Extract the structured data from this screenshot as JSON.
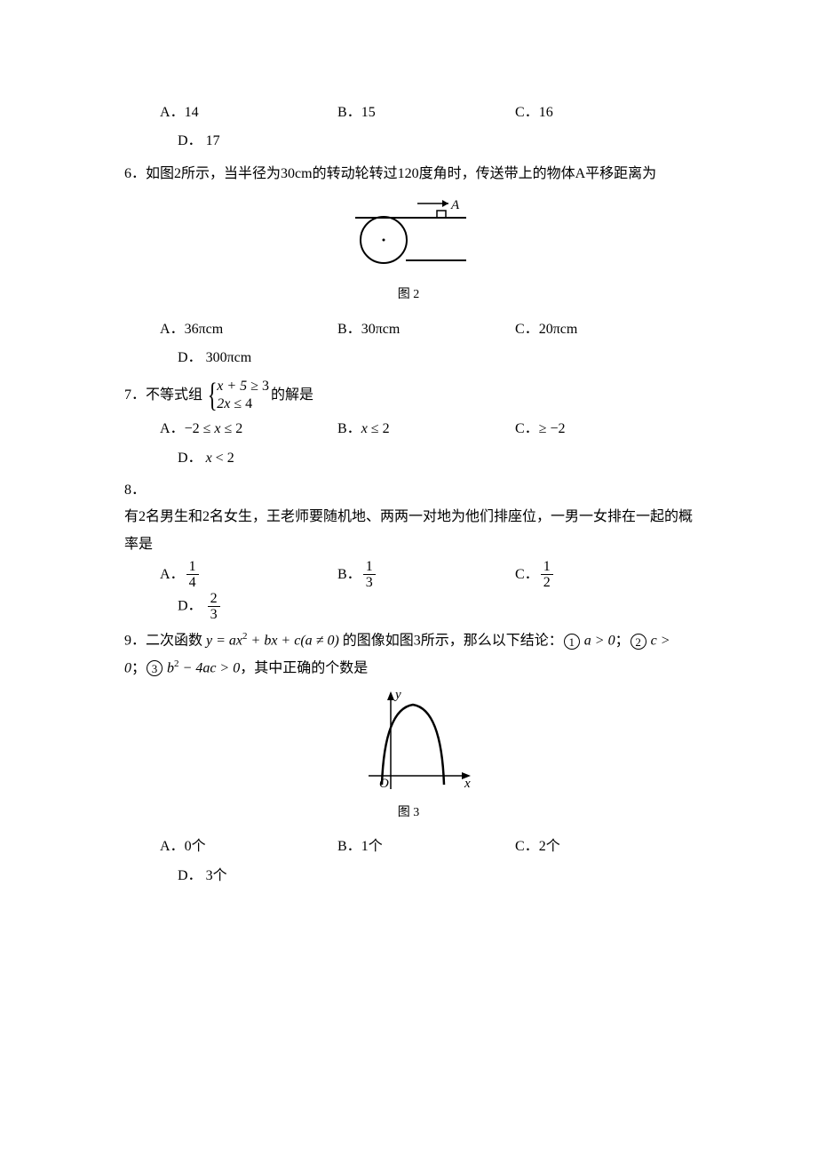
{
  "q5": {
    "options": {
      "A": {
        "label": "A．",
        "value": "14"
      },
      "B": {
        "label": "B．",
        "value": "15"
      },
      "C": {
        "label": "C．",
        "value": "16"
      },
      "D": {
        "label": "D．",
        "value": "17"
      }
    }
  },
  "q6": {
    "number": "6．",
    "text_before": "如图2所示，当半径为30cm的转动轮转过120度角时，传送带上的物体A平移距离为",
    "figure": {
      "caption": "图 2",
      "label_A": "A",
      "stroke": "#000000",
      "fill": "#ffffff"
    },
    "options": {
      "A": {
        "label": "A．",
        "value": "36πcm"
      },
      "B": {
        "label": "B．",
        "value": "30πcm"
      },
      "C": {
        "label": "C．",
        "value": "20πcm"
      },
      "D": {
        "label": "D．",
        "value": "300πcm"
      }
    }
  },
  "q7": {
    "number": "7．",
    "text_before": "不等式组",
    "system_line1": {
      "lhs": "x + 5",
      "op": "≥",
      "rhs": "3"
    },
    "system_line2": {
      "lhs": "2x",
      "op": "≤",
      "rhs": "4"
    },
    "text_after": "的解是",
    "options": {
      "A": {
        "label": "A．",
        "value_html": "−2 ≤ <i>x</i> ≤ 2"
      },
      "B": {
        "label": "B．",
        "value_html": "<i>x</i> ≤ 2"
      },
      "C": {
        "label": "C．",
        "value_html": "≥ −2"
      },
      "D": {
        "label": "D．",
        "value_html": "<i>x</i> < 2"
      }
    }
  },
  "q8": {
    "number": "8．",
    "text": "有2名男生和2名女生，王老师要随机地、两两一对地为他们排座位，一男一女排在一起的概率是",
    "options": {
      "A": {
        "label": "A．",
        "num": "1",
        "den": "4"
      },
      "B": {
        "label": "B．",
        "num": "1",
        "den": "3"
      },
      "C": {
        "label": "C．",
        "num": "1",
        "den": "2"
      },
      "D": {
        "label": "D．",
        "num": "2",
        "den": "3"
      }
    }
  },
  "q9": {
    "number": "9．",
    "text_p1_before": "二次函数 ",
    "formula_y": "y = ax",
    "formula_sup2": "2",
    "formula_mid": " + bx + c(a ≠ 0)",
    "text_p1_after": " 的图像如图3所示，那么以下结论：",
    "cond1": " a > 0",
    "text_sep1": "；",
    "cond2": " c > 0",
    "text_sep2": "；",
    "cond3_a": " b",
    "cond3_b": " − 4ac > 0",
    "text_p2_after": "，其中正确的个数是",
    "c1": "1",
    "c2": "2",
    "c3": "3",
    "figure": {
      "caption": "图 3",
      "label_y": "y",
      "label_x": "x",
      "label_O": "O",
      "stroke": "#000000",
      "fill": "#ffffff"
    },
    "options": {
      "A": {
        "label": "A．",
        "value": "0个"
      },
      "B": {
        "label": "B．",
        "value": "1个"
      },
      "C": {
        "label": "C．",
        "value": "2个"
      },
      "D": {
        "label": "D．",
        "value": "3个"
      }
    }
  }
}
